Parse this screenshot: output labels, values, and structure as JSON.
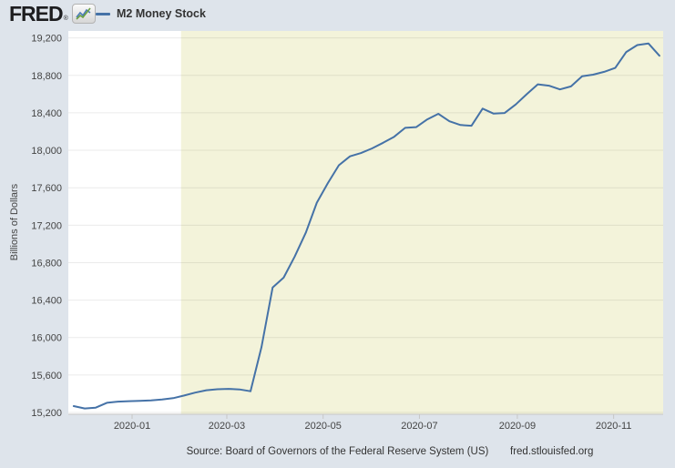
{
  "header": {
    "logo_text": "FRED",
    "logo_reg": "®"
  },
  "legend": {
    "label": "M2 Money Stock"
  },
  "chart": {
    "y_axis_title": "Billions of Dollars"
  },
  "footer": {
    "source": "Source: Board of Governors of the Federal Reserve System (US)",
    "site": "fred.stlouisfed.org"
  },
  "colors": {
    "page_bg": "#dee4eb",
    "plot_bg": "#ffffff",
    "recession_band": "#f3f3da",
    "grid": "rgba(0,0,0,0.08)",
    "axis": "#c6c6c6",
    "line": "#4572a7",
    "text": "#444444",
    "logo_green": "#69a041",
    "logo_blue": "#4b7bb5"
  },
  "chart_data": {
    "type": "line",
    "title": "M2 Money Stock",
    "xlabel": "",
    "ylabel": "Billions of Dollars",
    "ylim": [
      15200,
      19200
    ],
    "grid": "horizontal",
    "legend_position": "top-left-header",
    "recession_band_start": "2020-02-01",
    "x_range": [
      "2019-11-21",
      "2020-12-02"
    ],
    "y_ticks": [
      {
        "value": 15200,
        "label": "15,200"
      },
      {
        "value": 15600,
        "label": "15,600"
      },
      {
        "value": 16000,
        "label": "16,000"
      },
      {
        "value": 16400,
        "label": "16,400"
      },
      {
        "value": 16800,
        "label": "16,800"
      },
      {
        "value": 17200,
        "label": "17,200"
      },
      {
        "value": 17600,
        "label": "17,600"
      },
      {
        "value": 18000,
        "label": "18,000"
      },
      {
        "value": 18400,
        "label": "18,400"
      },
      {
        "value": 18800,
        "label": "18,800"
      },
      {
        "value": 19200,
        "label": "19,200"
      }
    ],
    "x_ticks": [
      {
        "date": "2020-01-01",
        "label": "2020-01"
      },
      {
        "date": "2020-03-01",
        "label": "2020-03"
      },
      {
        "date": "2020-05-01",
        "label": "2020-05"
      },
      {
        "date": "2020-07-01",
        "label": "2020-07"
      },
      {
        "date": "2020-09-01",
        "label": "2020-09"
      },
      {
        "date": "2020-11-01",
        "label": "2020-11"
      }
    ],
    "series": [
      {
        "name": "M2 Money Stock",
        "units": "Billions of Dollars",
        "x": [
          "2019-11-25",
          "2019-12-02",
          "2019-12-09",
          "2019-12-16",
          "2019-12-23",
          "2019-12-30",
          "2020-01-06",
          "2020-01-13",
          "2020-01-20",
          "2020-01-27",
          "2020-02-03",
          "2020-02-10",
          "2020-02-17",
          "2020-02-24",
          "2020-03-02",
          "2020-03-09",
          "2020-03-16",
          "2020-03-23",
          "2020-03-30",
          "2020-04-06",
          "2020-04-13",
          "2020-04-20",
          "2020-04-27",
          "2020-05-04",
          "2020-05-11",
          "2020-05-18",
          "2020-05-25",
          "2020-06-01",
          "2020-06-08",
          "2020-06-15",
          "2020-06-22",
          "2020-06-29",
          "2020-07-06",
          "2020-07-13",
          "2020-07-20",
          "2020-07-27",
          "2020-08-03",
          "2020-08-10",
          "2020-08-17",
          "2020-08-24",
          "2020-08-31",
          "2020-09-07",
          "2020-09-14",
          "2020-09-21",
          "2020-09-28",
          "2020-10-05",
          "2020-10-12",
          "2020-10-19",
          "2020-10-26",
          "2020-11-02",
          "2020-11-09",
          "2020-11-16",
          "2020-11-23",
          "2020-11-30"
        ],
        "values": [
          15268,
          15243,
          15252,
          15303,
          15316,
          15321,
          15324,
          15329,
          15338,
          15353,
          15381,
          15412,
          15437,
          15448,
          15452,
          15446,
          15427,
          15900,
          16535,
          16640,
          16865,
          17120,
          17440,
          17650,
          17840,
          17935,
          17970,
          18020,
          18080,
          18145,
          18240,
          18248,
          18330,
          18390,
          18310,
          18270,
          18262,
          18445,
          18392,
          18398,
          18490,
          18600,
          18705,
          18690,
          18650,
          18682,
          18790,
          18808,
          18838,
          18880,
          19050,
          19124,
          19141,
          19010
        ]
      }
    ]
  }
}
